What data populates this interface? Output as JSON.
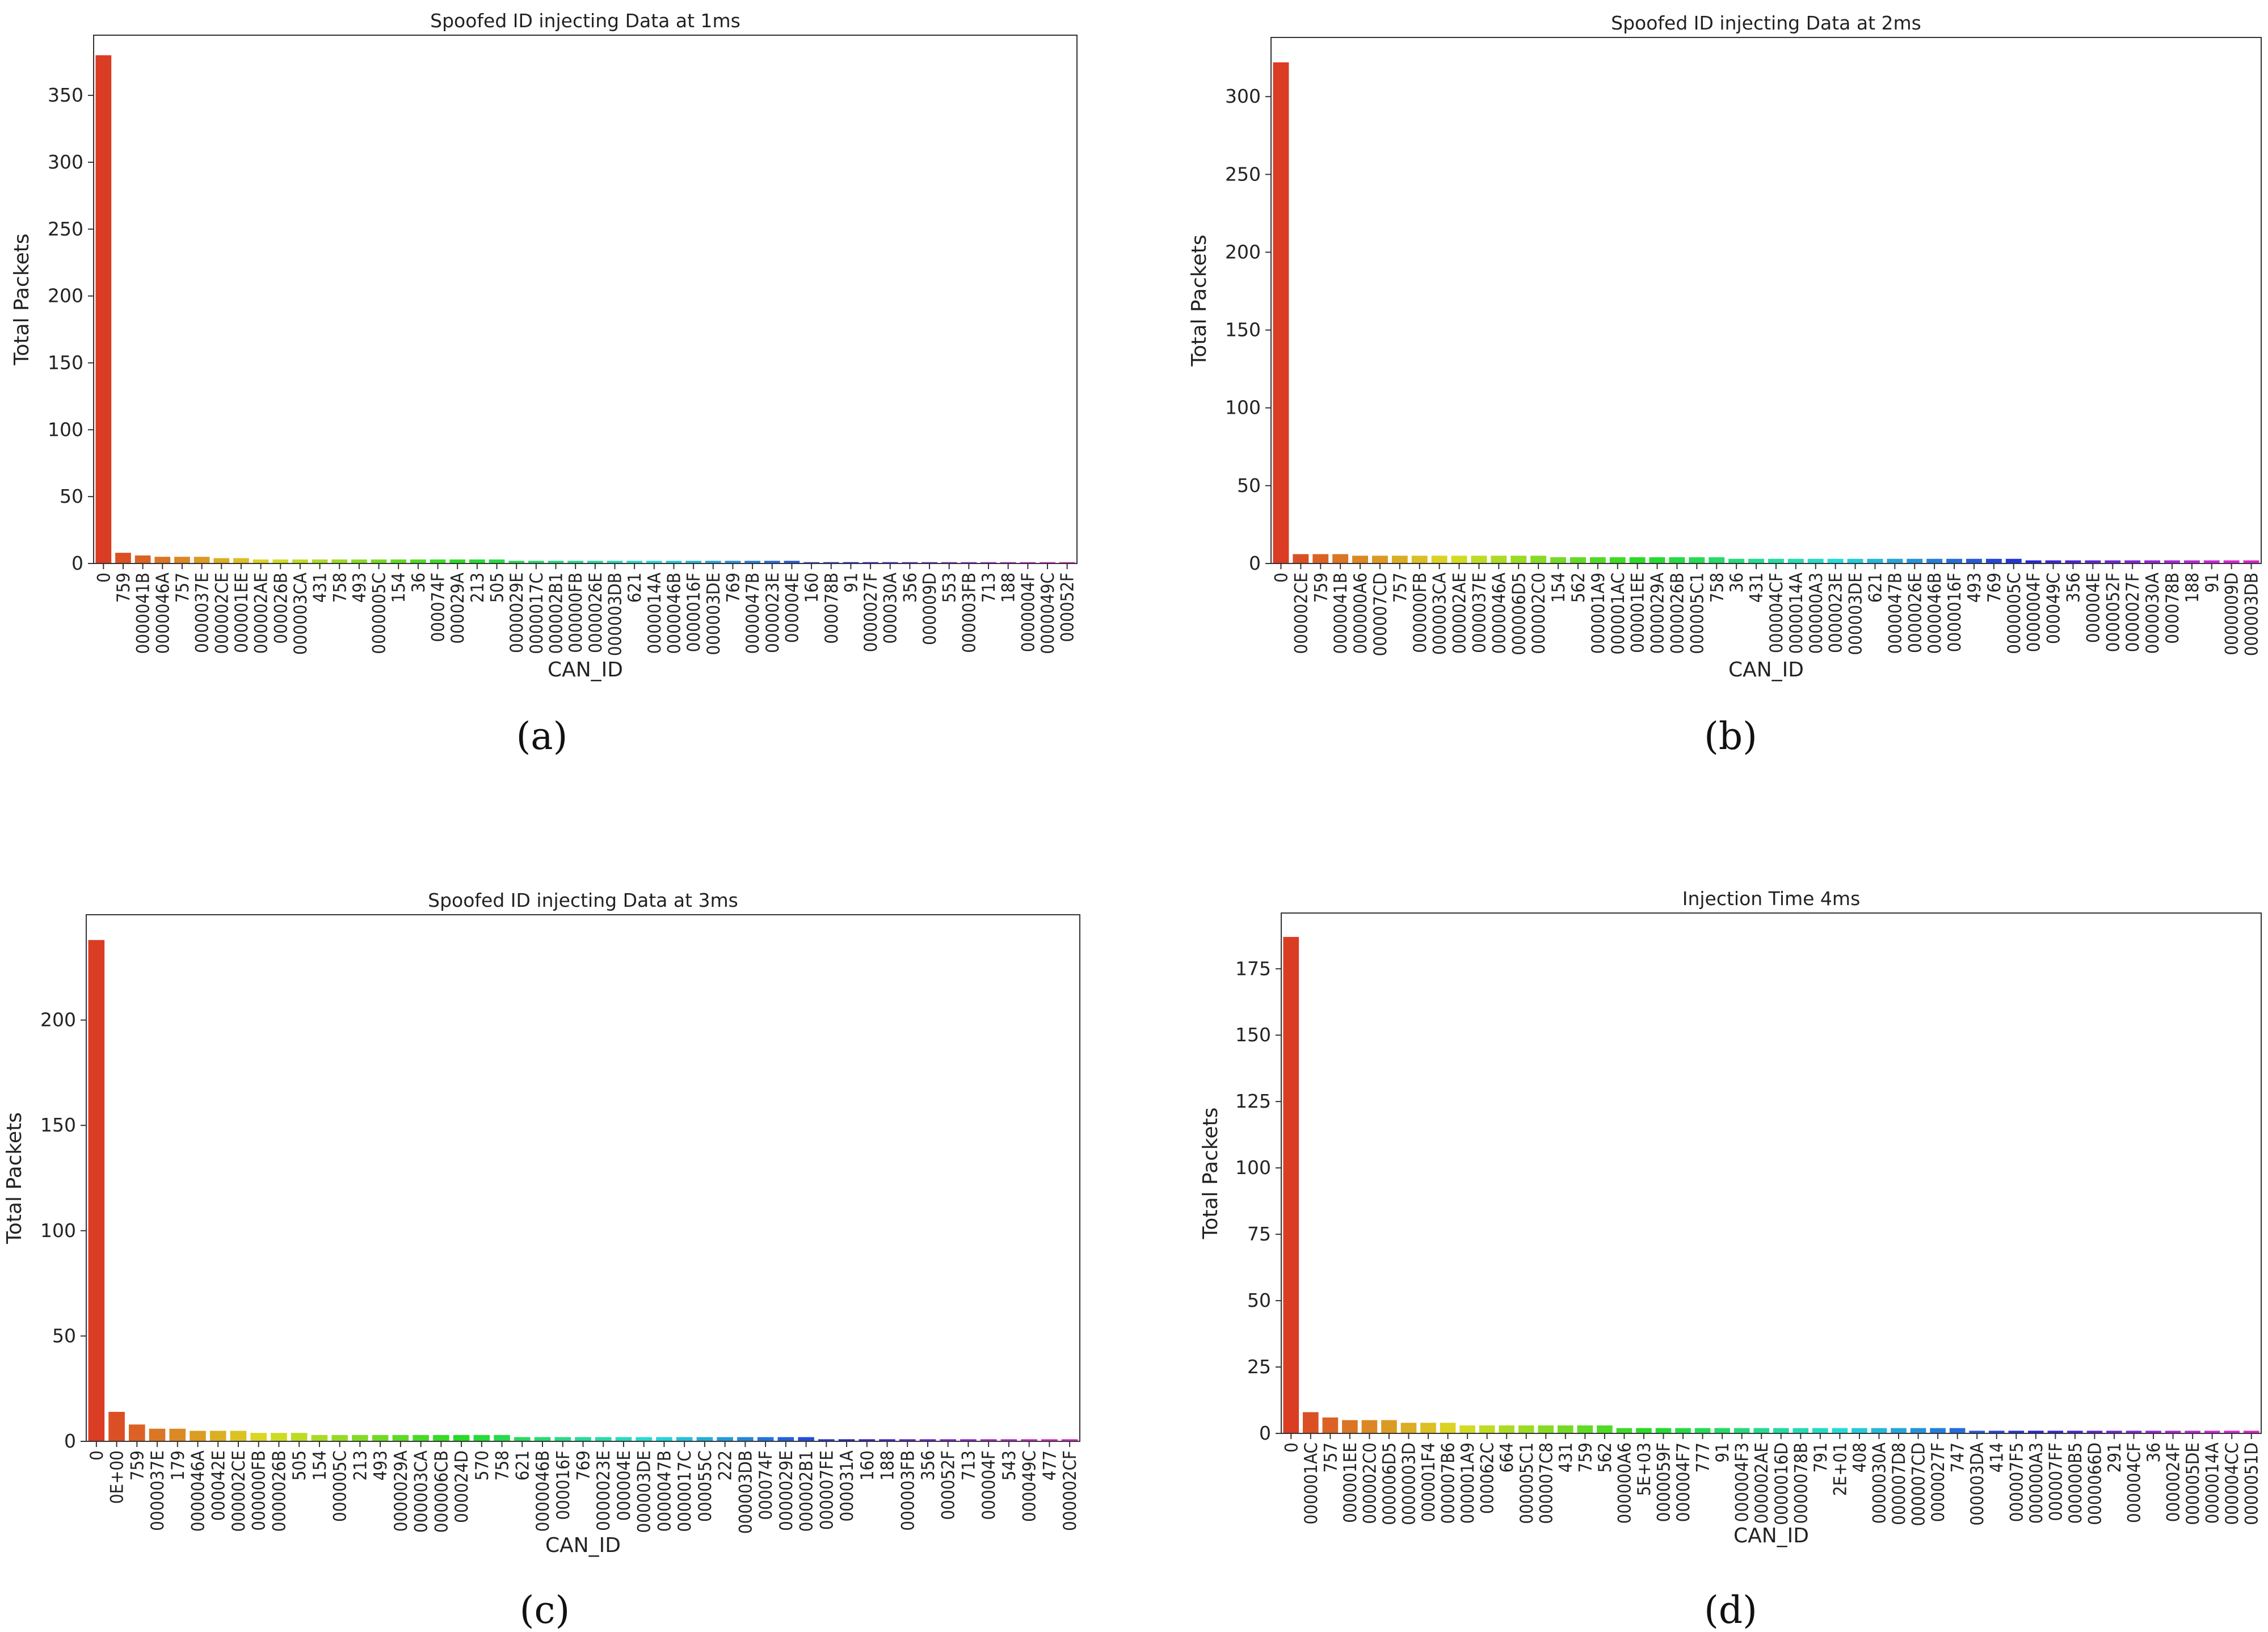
{
  "chart_data": [
    {
      "type": "bar",
      "title": "Spoofed ID injecting Data at 1ms",
      "xlabel": "CAN_ID",
      "ylabel": "Total Packets",
      "caption": "(a)",
      "ylim": [
        0,
        395
      ],
      "yticks": [
        0,
        50,
        100,
        150,
        200,
        250,
        300,
        350
      ],
      "categories": [
        "0",
        "759",
        "0000041B",
        "0000046A",
        "757",
        "0000037E",
        "000002CE",
        "000001EE",
        "000002AE",
        "000026B",
        "000003CA",
        "431",
        "758",
        "493",
        "0000005C",
        "154",
        "36",
        "000074F",
        "000029A",
        "213",
        "505",
        "0000029E",
        "0000017C",
        "000002B1",
        "000000FB",
        "0000026E",
        "000003DB",
        "621",
        "0000014A",
        "0000046B",
        "0000016F",
        "000003DE",
        "769",
        "0000047B",
        "0000023E",
        "000004E",
        "160",
        "000078B",
        "91",
        "0000027F",
        "000030A",
        "356",
        "000009D",
        "553",
        "000003FB",
        "713",
        "188",
        "0000004F",
        "0000049C",
        "000052F"
      ],
      "values": [
        380,
        8,
        6,
        5,
        5,
        5,
        4,
        4,
        3,
        3,
        3,
        3,
        3,
        3,
        3,
        3,
        3,
        3,
        3,
        3,
        3,
        2,
        2,
        2,
        2,
        2,
        2,
        2,
        2,
        2,
        2,
        2,
        2,
        2,
        2,
        2,
        1,
        1,
        1,
        1,
        1,
        1,
        1,
        1,
        1,
        1,
        1,
        1,
        1,
        1
      ]
    },
    {
      "type": "bar",
      "title": "Spoofed ID injecting Data at 2ms",
      "xlabel": "CAN_ID",
      "ylabel": "Total Packets",
      "caption": "(b)",
      "ylim": [
        0,
        338
      ],
      "yticks": [
        0,
        50,
        100,
        150,
        200,
        250,
        300
      ],
      "categories": [
        "0",
        "000002CE",
        "759",
        "0000041B",
        "000000A6",
        "000007CD",
        "757",
        "000000FB",
        "000003CA",
        "000002AE",
        "0000037E",
        "0000046A",
        "000006D5",
        "000002C0",
        "154",
        "562",
        "000001A9",
        "000001AC",
        "000001EE",
        "0000029A",
        "0000026B",
        "000005C1",
        "758",
        "36",
        "431",
        "000004CF",
        "0000014A",
        "000000A3",
        "0000023E",
        "000003DE",
        "621",
        "0000047B",
        "0000026E",
        "0000046B",
        "0000016F",
        "493",
        "769",
        "0000005C",
        "0000004F",
        "000049C",
        "356",
        "000004E",
        "0000052F",
        "0000027F",
        "0000030A",
        "000078B",
        "188",
        "91",
        "0000009D",
        "000003DB"
      ],
      "values": [
        322,
        6,
        6,
        6,
        5,
        5,
        5,
        5,
        5,
        5,
        5,
        5,
        5,
        5,
        4,
        4,
        4,
        4,
        4,
        4,
        4,
        4,
        4,
        3,
        3,
        3,
        3,
        3,
        3,
        3,
        3,
        3,
        3,
        3,
        3,
        3,
        3,
        3,
        2,
        2,
        2,
        2,
        2,
        2,
        2,
        2,
        2,
        2,
        2,
        2
      ]
    },
    {
      "type": "bar",
      "title": "Spoofed ID injecting Data at 3ms",
      "xlabel": "CAN_ID",
      "ylabel": "Total Packets",
      "caption": "(c)",
      "ylim": [
        0,
        250
      ],
      "yticks": [
        0,
        50,
        100,
        150,
        200
      ],
      "categories": [
        "0",
        "0E+00",
        "759",
        "0000037E",
        "179",
        "0000046A",
        "000042E",
        "000002CE",
        "000000FB",
        "0000026B",
        "505",
        "154",
        "000005C",
        "213",
        "493",
        "0000029A",
        "000003CA",
        "000006CB",
        "000024D",
        "570",
        "758",
        "621",
        "0000046B",
        "000016F",
        "769",
        "0000023E",
        "000004E",
        "000003DE",
        "0000047B",
        "0000017C",
        "000055C",
        "222",
        "000003DB",
        "000074F",
        "0000029E",
        "000002B1",
        "000007FE",
        "000031A",
        "160",
        "188",
        "000003FB",
        "356",
        "000052F",
        "713",
        "000004F",
        "543",
        "000049C",
        "477",
        "000002CF"
      ],
      "values": [
        238,
        14,
        8,
        6,
        6,
        5,
        5,
        5,
        4,
        4,
        4,
        3,
        3,
        3,
        3,
        3,
        3,
        3,
        3,
        3,
        3,
        2,
        2,
        2,
        2,
        2,
        2,
        2,
        2,
        2,
        2,
        2,
        2,
        2,
        2,
        2,
        1,
        1,
        1,
        1,
        1,
        1,
        1,
        1,
        1,
        1,
        1,
        1,
        1
      ]
    },
    {
      "type": "bar",
      "title": "Injection Time 4ms",
      "xlabel": "CAN_ID",
      "ylabel": "Total Packets",
      "caption": "(d)",
      "ylim": [
        0,
        196
      ],
      "yticks": [
        0,
        25,
        50,
        75,
        100,
        125,
        150,
        175
      ],
      "categories": [
        "0",
        "000001AC",
        "757",
        "000001EE",
        "000002C0",
        "000006D5",
        "0000003D",
        "000001F4",
        "000007B6",
        "000001A9",
        "000062C",
        "664",
        "000005C1",
        "000007C8",
        "431",
        "759",
        "562",
        "000000A6",
        "5E+03",
        "0000059F",
        "000004F7",
        "777",
        "91",
        "000004F3",
        "000002AE",
        "0000016D",
        "0000078B",
        "791",
        "2E+01",
        "408",
        "0000030A",
        "000007D8",
        "000007CD",
        "0000027F",
        "747",
        "000003DA",
        "414",
        "000007F5",
        "000000A3",
        "000007FF",
        "000000B5",
        "0000066D",
        "291",
        "000004CF",
        "36",
        "0000024F",
        "000005DE",
        "0000014A",
        "000004CC",
        "0000051D"
      ],
      "values": [
        187,
        8,
        6,
        5,
        5,
        5,
        4,
        4,
        4,
        3,
        3,
        3,
        3,
        3,
        3,
        3,
        3,
        2,
        2,
        2,
        2,
        2,
        2,
        2,
        2,
        2,
        2,
        2,
        2,
        2,
        2,
        2,
        2,
        2,
        2,
        1,
        1,
        1,
        1,
        1,
        1,
        1,
        1,
        1,
        1,
        1,
        1,
        1,
        1,
        1
      ]
    }
  ]
}
